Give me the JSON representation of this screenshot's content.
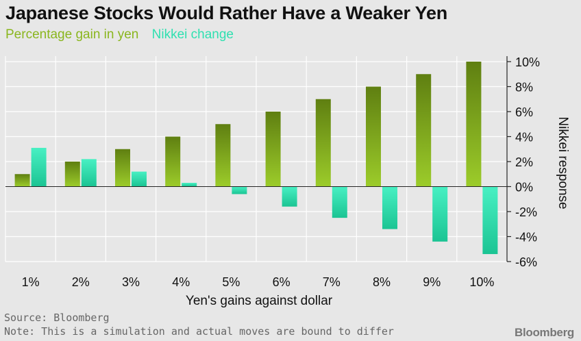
{
  "title": "Japanese Stocks Would Rather Have a Weaker Yen",
  "source": "Source: Bloomberg",
  "note": "Note: This is a simulation and actual moves are bound to differ",
  "brand": "Bloomberg",
  "colors": {
    "background": "#e7e7e7",
    "series1_top": "#5f7f11",
    "series1_bottom": "#9ccc2a",
    "series2_top": "#48f0c3",
    "series2_bottom": "#1bc493",
    "grid": "#ffffff"
  },
  "chart_data": {
    "type": "bar",
    "categories": [
      "1%",
      "2%",
      "3%",
      "4%",
      "5%",
      "6%",
      "7%",
      "8%",
      "9%",
      "10%"
    ],
    "series": [
      {
        "name": "Percentage gain in yen",
        "values": [
          1,
          2,
          3,
          4,
          5,
          6,
          7,
          8,
          9,
          10
        ]
      },
      {
        "name": "Nikkei change",
        "values": [
          3.1,
          2.2,
          1.2,
          0.3,
          -0.6,
          -1.6,
          -2.5,
          -3.4,
          -4.4,
          -5.4
        ]
      }
    ],
    "xlabel": "Yen's gains against dollar",
    "ylabel": "Nikkei response",
    "ylim": [
      -6,
      10
    ],
    "yticks": [
      "10%",
      "8%",
      "6%",
      "4%",
      "2%",
      "0%",
      "-2%",
      "-4%",
      "-6%"
    ],
    "ytick_values": [
      10,
      8,
      6,
      4,
      2,
      0,
      -2,
      -4,
      -6
    ],
    "y_axis_side": "right",
    "grid": true,
    "legend": "top-left"
  }
}
